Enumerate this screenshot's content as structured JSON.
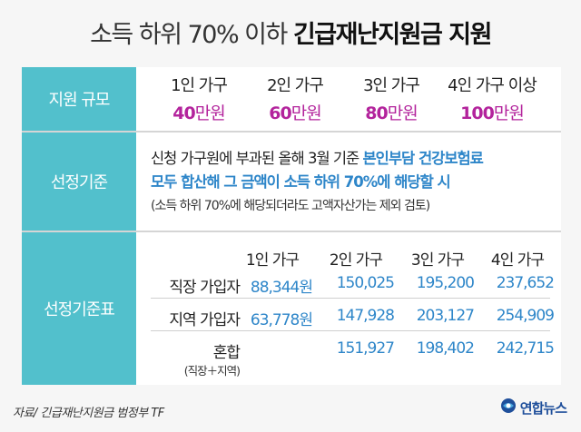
{
  "title": {
    "light": "소득 하위 70% 이하 ",
    "bold": "긴급재난지원금 지원"
  },
  "rows": {
    "scale_label": "지원 규모",
    "criteria_label": "선정기준",
    "table_label": "선정기준표"
  },
  "scale": [
    {
      "household": "1인 가구",
      "amount": "40",
      "unit": "만원"
    },
    {
      "household": "2인 가구",
      "amount": "60",
      "unit": "만원"
    },
    {
      "household": "3인 가구",
      "amount": "80",
      "unit": "만원"
    },
    {
      "household": "4인 가구 이상",
      "amount": "100",
      "unit": "만원"
    }
  ],
  "criteria": {
    "line1_plain": "신청 가구원에 부과된 올해 3월 기준 ",
    "line1_highlight": "본인부담 건강보험료",
    "line2_highlight": "모두 합산해 그 금액이 소득 하위 70%에 해당할 시",
    "note": "(소득 하위 70%에 해당되더라도 고액자산가는 제외 검토)"
  },
  "table": {
    "headers": [
      "1인 가구",
      "2인 가구",
      "3인 가구",
      "4인 가구"
    ],
    "rows": [
      {
        "label": "직장 가입자",
        "values": [
          "88,344원",
          "150,025",
          "195,200",
          "237,652"
        ]
      },
      {
        "label": "지역 가입자",
        "values": [
          "63,778원",
          "147,928",
          "203,127",
          "254,909"
        ]
      },
      {
        "label": "혼합",
        "sublabel": "(직장＋지역)",
        "values": [
          "",
          "151,927",
          "198,402",
          "242,715"
        ]
      }
    ]
  },
  "footer": {
    "source": "자료/ 긴급재난지원금 범정부 TF",
    "logo": "연합뉴스"
  },
  "colors": {
    "accent": "#52c0cc",
    "amount": "#b3239c",
    "highlight": "#2e86c9"
  }
}
